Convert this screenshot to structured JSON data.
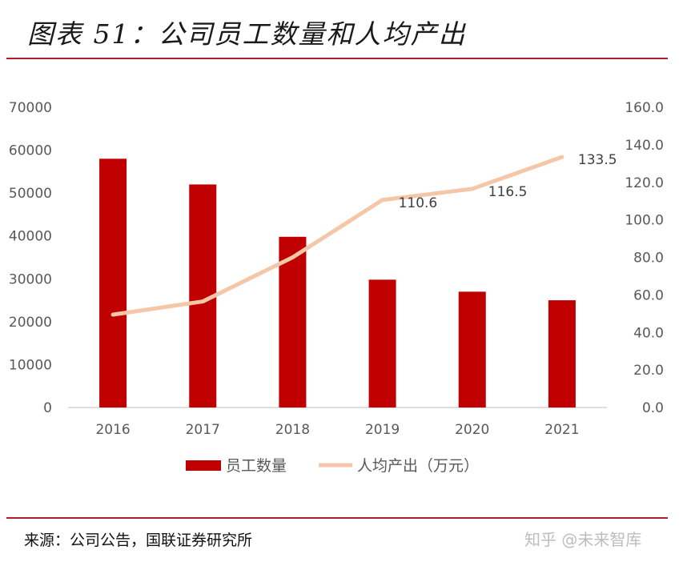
{
  "header": {
    "title": "图表 51：公司员工数量和人均产出"
  },
  "footer": {
    "source": "来源：公司公告，国联证券研究所",
    "watermark": "知乎 @未来智库"
  },
  "chart_data": {
    "type": "bar+line",
    "categories": [
      "2016",
      "2017",
      "2018",
      "2019",
      "2020",
      "2021"
    ],
    "series": [
      {
        "name": "员工数量",
        "type": "bar",
        "axis": "left",
        "color": "#c00000",
        "values": [
          58000,
          52000,
          39800,
          29800,
          27000,
          25000
        ]
      },
      {
        "name": "人均产出（万元）",
        "type": "line",
        "axis": "right",
        "color": "#f4c7a8",
        "values": [
          49.5,
          56.5,
          80.0,
          110.6,
          116.5,
          133.5
        ],
        "data_labels": [
          "",
          "",
          "",
          "110.6",
          "116.5",
          "133.5"
        ]
      }
    ],
    "y_left": {
      "min": 0,
      "max": 70000,
      "ticks": [
        "0",
        "10000",
        "20000",
        "30000",
        "40000",
        "50000",
        "60000",
        "70000"
      ]
    },
    "y_right": {
      "min": 0,
      "max": 160,
      "ticks": [
        "0.0",
        "20.0",
        "40.0",
        "60.0",
        "80.0",
        "100.0",
        "120.0",
        "140.0",
        "160.0"
      ]
    },
    "grid": false,
    "legend": "bottom"
  }
}
